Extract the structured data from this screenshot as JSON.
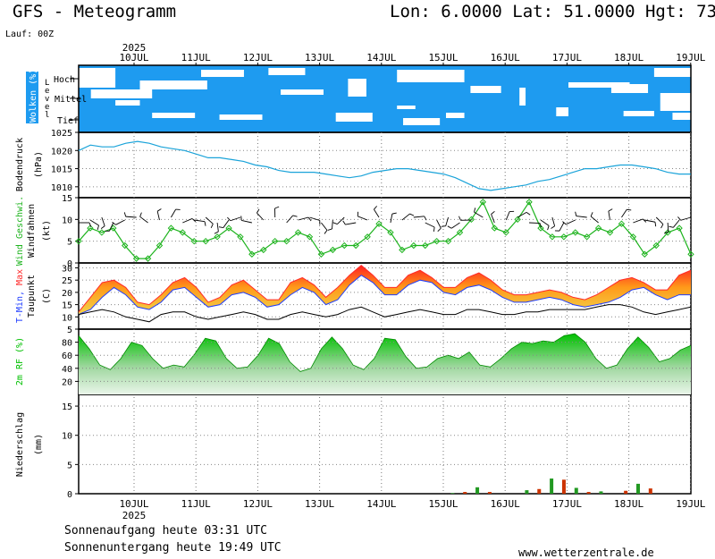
{
  "header": {
    "title": "GFS - Meteogramm",
    "coords": "Lon: 6.0000  Lat: 51.0000  Hgt: 73",
    "run": "Lauf: 00Z"
  },
  "footer": {
    "sunrise": "Sonnenaufgang heute 03:31 UTC",
    "sunset": "Sonnenuntergang heute 19:49 UTC",
    "site": "www.wetterzentrale.de"
  },
  "colors": {
    "cloud_bg": "#1e9bf0",
    "pressure": "#1aa3d9",
    "wind": "#1db31d",
    "tmax": "#ff2a2a",
    "tmin": "#1e3cff",
    "rh": "#00c000",
    "precip_bar": "#cc3300",
    "precip_bar2": "#229922"
  },
  "chart_data": {
    "type": "line",
    "x": [
      "10JUL",
      "11JUL",
      "12JUL",
      "13JUL",
      "14JUL",
      "15JUL",
      "16JUL",
      "17JUL",
      "18JUL",
      "19JUL"
    ],
    "year_label": "2025",
    "panels": {
      "clouds": {
        "title": "Wolken (%)",
        "sublabel": "Level",
        "levels": [
          "Hoch",
          "Mittel",
          "Tief"
        ]
      },
      "pressure": {
        "ylabel": "Bodendruck",
        "unit": "(hPa)",
        "yticks": [
          "1025",
          "1020",
          "1015",
          "1010"
        ],
        "ylim": [
          1007,
          1025
        ],
        "values": [
          1020,
          1021.5,
          1021,
          1021,
          1022,
          1022.5,
          1022,
          1021,
          1020.5,
          1020,
          1019,
          1018,
          1018,
          1017.5,
          1017,
          1016,
          1015.5,
          1014.5,
          1014,
          1014,
          1014,
          1013.5,
          1013,
          1012.5,
          1013,
          1014,
          1014.5,
          1015,
          1015,
          1014.5,
          1014,
          1013.5,
          1012.5,
          1011,
          1009.5,
          1009,
          1009.5,
          1010,
          1010.5,
          1011.5,
          1012,
          1013,
          1014,
          1015,
          1015,
          1015.5,
          1016,
          1016,
          1015.5,
          1015,
          1014,
          1013.5,
          1013.5
        ]
      },
      "wind": {
        "ylabel": "Wind Geschwi.",
        "ylabel2": "Windfahnen",
        "unit": "(kt)",
        "yticks": [
          "15",
          "10",
          "5",
          "0"
        ],
        "ylim": [
          0,
          15
        ],
        "values": [
          5,
          8,
          7,
          8,
          4,
          1,
          1,
          4,
          8,
          7,
          5,
          5,
          6,
          8,
          6,
          2,
          3,
          5,
          5,
          7,
          6,
          2,
          3,
          4,
          4,
          6,
          9,
          7,
          3,
          4,
          4,
          5,
          5,
          7,
          10,
          14,
          8,
          7,
          10,
          14,
          8,
          6,
          6,
          7,
          6,
          8,
          7,
          9,
          6,
          2,
          4,
          7,
          8,
          2
        ]
      },
      "temperature": {
        "ylabel_tmin": "T-Min,",
        "ylabel_tmax": "Max",
        "ylabel2": "Taupunkt",
        "unit": "(C)",
        "yticks": [
          "30",
          "25",
          "20",
          "15",
          "10",
          "5"
        ],
        "ylim": [
          5,
          32
        ],
        "tmin": [
          11,
          13,
          18,
          22,
          19,
          14,
          13,
          16,
          21,
          22,
          18,
          14,
          15,
          19,
          20,
          18,
          14,
          15,
          19,
          22,
          20,
          15,
          17,
          23,
          27,
          24,
          19,
          19,
          23,
          25,
          24,
          20,
          19,
          22,
          23,
          21,
          18,
          16,
          16,
          17,
          18,
          17,
          15,
          14,
          15,
          16,
          18,
          21,
          22,
          19,
          17,
          19,
          19
        ],
        "tmax": [
          12,
          18,
          24,
          25,
          22,
          16,
          15,
          19,
          24,
          26,
          22,
          16,
          18,
          23,
          25,
          21,
          17,
          17,
          24,
          26,
          23,
          18,
          22,
          27,
          31,
          27,
          22,
          22,
          27,
          29,
          26,
          22,
          22,
          26,
          28,
          25,
          21,
          19,
          19,
          20,
          21,
          20,
          18,
          17,
          19,
          22,
          25,
          26,
          24,
          21,
          21,
          27,
          29
        ],
        "dew": [
          11,
          12,
          13,
          12,
          10,
          9,
          8,
          11,
          12,
          12,
          10,
          9,
          10,
          11,
          12,
          11,
          9,
          9,
          11,
          12,
          11,
          10,
          11,
          13,
          14,
          12,
          10,
          11,
          12,
          13,
          12,
          11,
          11,
          13,
          13,
          12,
          11,
          11,
          12,
          12,
          13,
          13,
          13,
          13,
          14,
          15,
          15,
          14,
          12,
          11,
          12,
          13,
          14
        ]
      },
      "humidity": {
        "ylabel": "2m RF (%)",
        "yticks": [
          "80",
          "60",
          "40",
          "20"
        ],
        "ylim": [
          0,
          100
        ],
        "values": [
          90,
          70,
          45,
          38,
          55,
          80,
          75,
          55,
          40,
          45,
          42,
          62,
          86,
          82,
          55,
          40,
          42,
          60,
          86,
          78,
          50,
          35,
          40,
          70,
          88,
          70,
          45,
          38,
          55,
          86,
          84,
          58,
          40,
          42,
          55,
          60,
          55,
          65,
          45,
          42,
          55,
          70,
          80,
          78,
          82,
          80,
          90,
          93,
          80,
          55,
          40,
          45,
          70,
          88,
          72,
          50,
          55,
          68,
          75
        ]
      },
      "precipitation": {
        "ylabel": "Niederschlag",
        "unit": "(mm)",
        "yticks": [
          "15",
          "10",
          "5",
          "0"
        ],
        "ylim": [
          0,
          17
        ],
        "bars": [
          {
            "x": 6.15,
            "value": 0.1
          },
          {
            "x": 6.35,
            "value": 0.3
          },
          {
            "x": 6.55,
            "value": 1.1
          },
          {
            "x": 6.75,
            "value": 0.3
          },
          {
            "x": 7.35,
            "value": 0.6
          },
          {
            "x": 7.55,
            "value": 0.8
          },
          {
            "x": 7.75,
            "value": 2.6
          },
          {
            "x": 7.95,
            "value": 2.4
          },
          {
            "x": 8.15,
            "value": 1.0
          },
          {
            "x": 8.35,
            "value": 0.3
          },
          {
            "x": 8.55,
            "value": 0.4
          },
          {
            "x": 8.95,
            "value": 0.5
          },
          {
            "x": 9.15,
            "value": 1.7
          },
          {
            "x": 9.35,
            "value": 0.9
          }
        ]
      }
    }
  }
}
